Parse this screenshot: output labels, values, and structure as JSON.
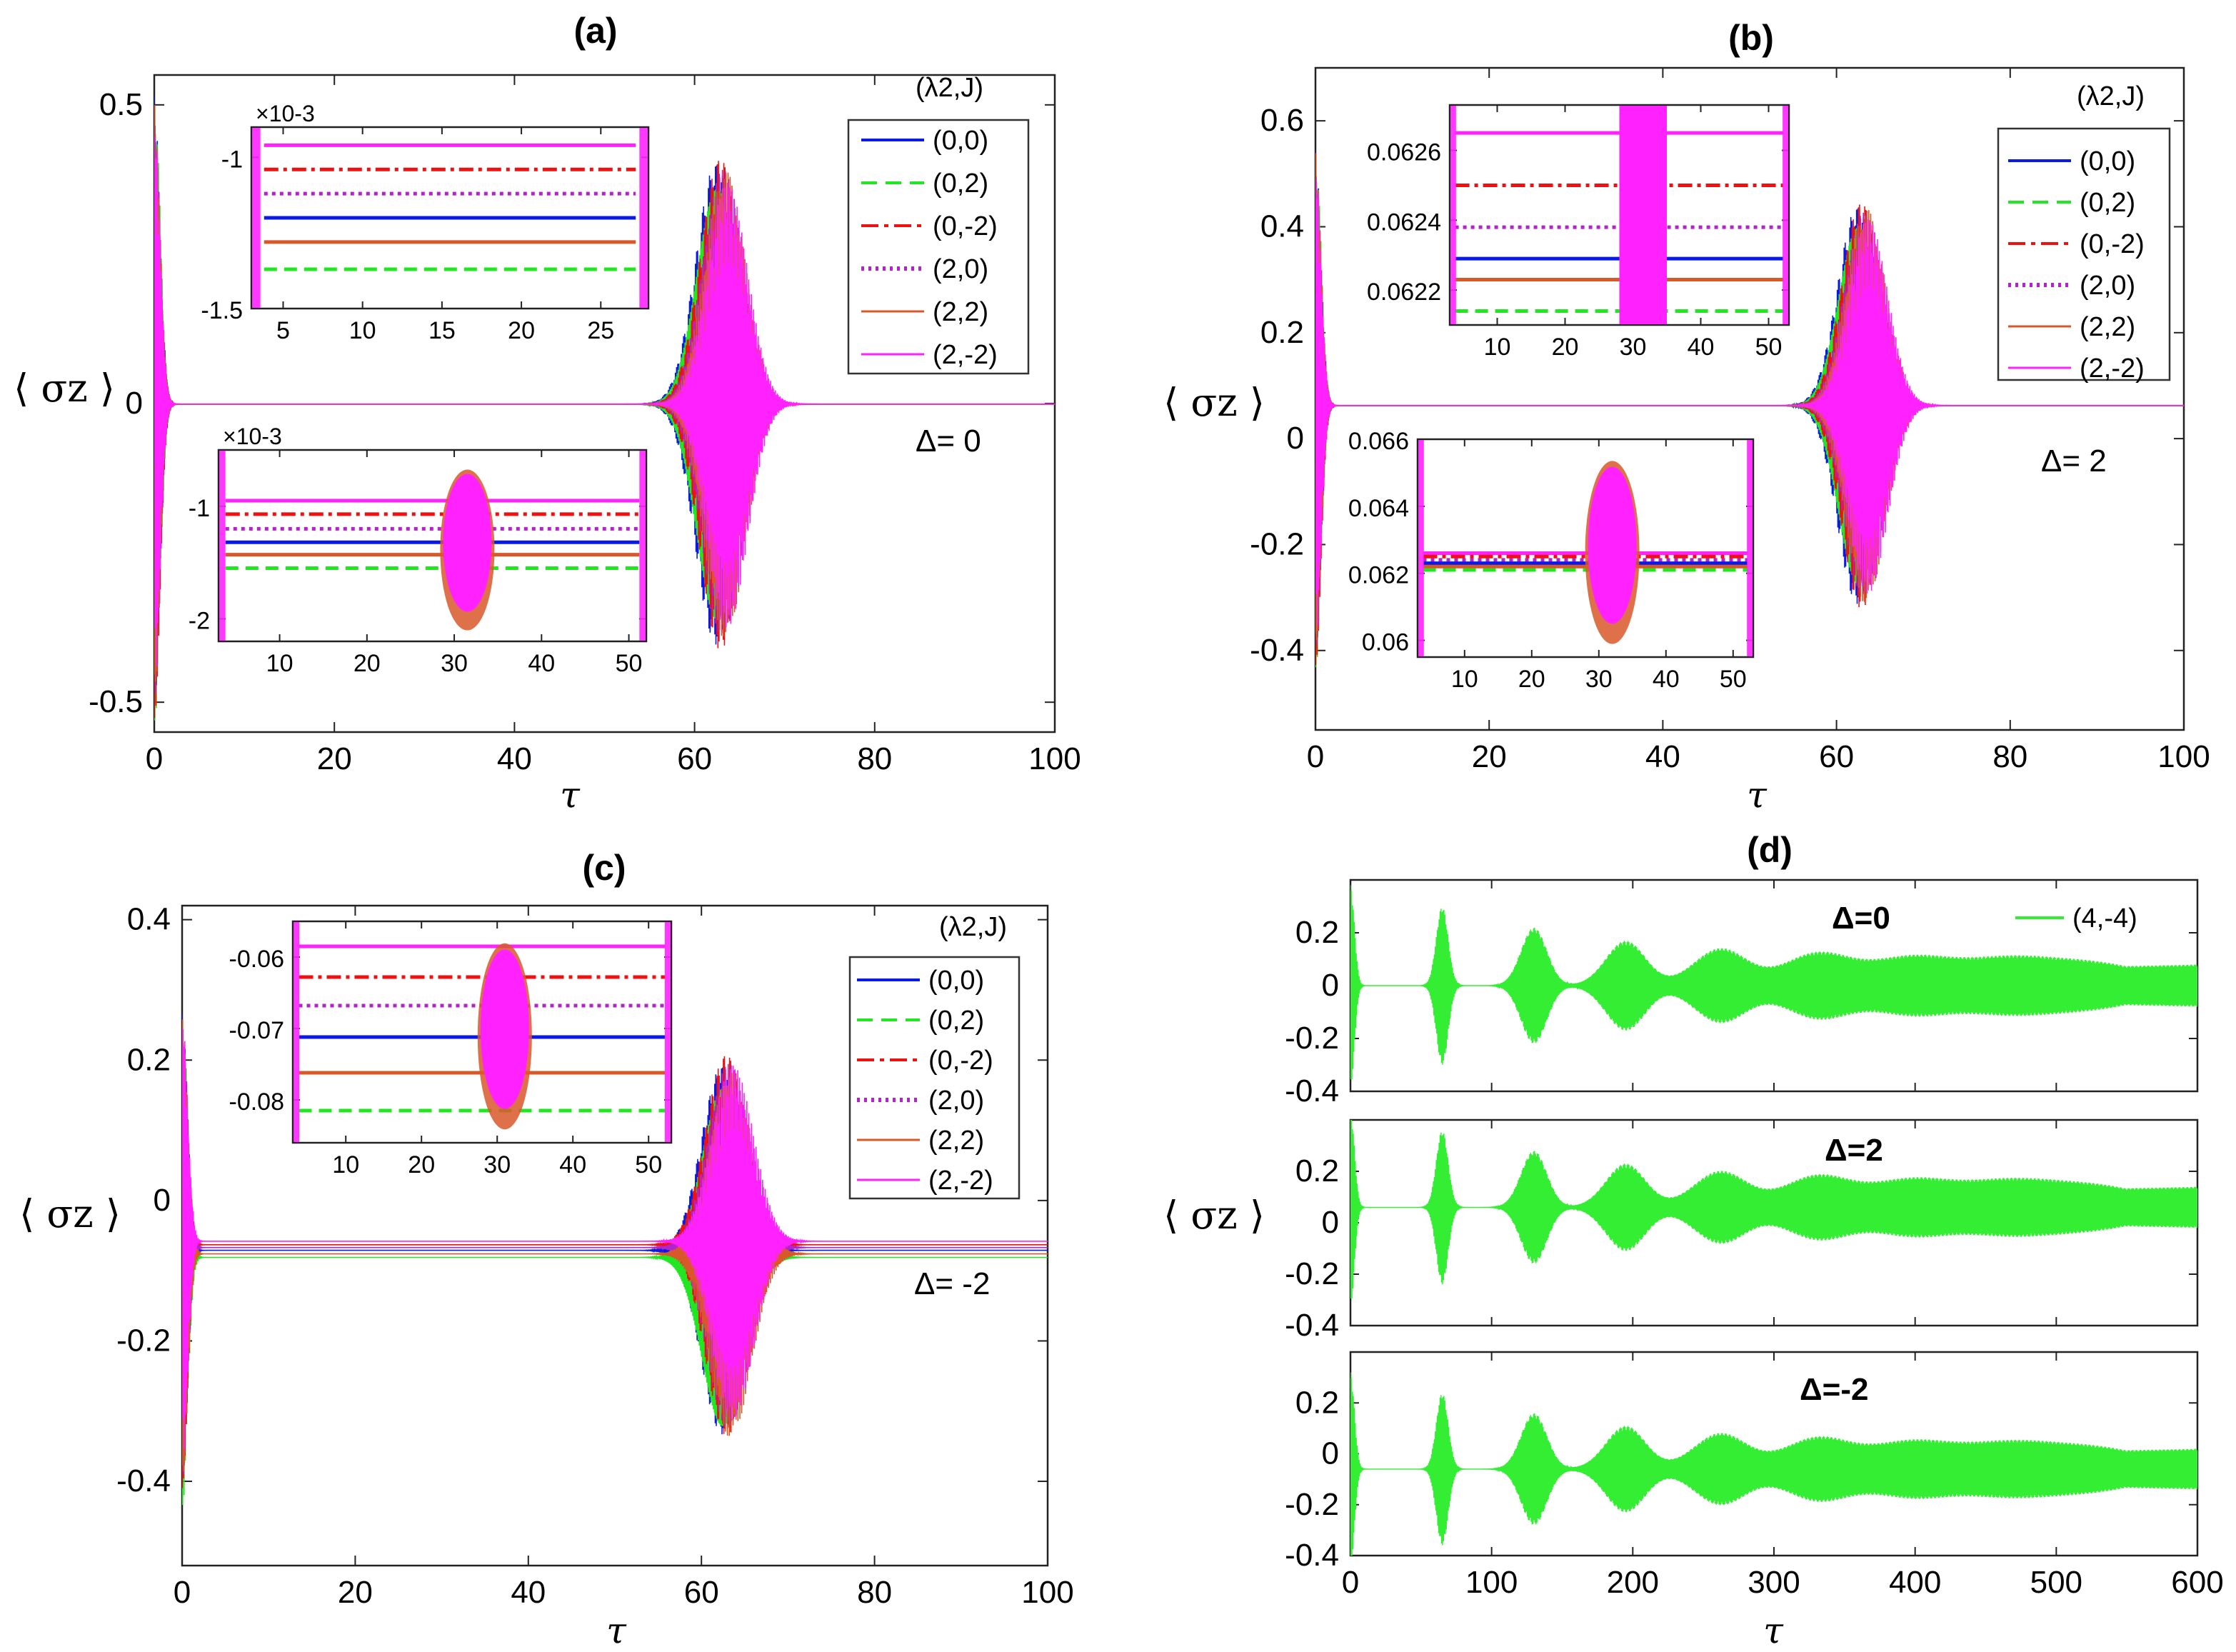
{
  "figure": {
    "colors": {
      "blue": "#0a1ae6",
      "green": "#22e622",
      "red": "#ee1111",
      "purple": "#b422cc",
      "orange": "#d9582a",
      "magenta": "#ff22ff",
      "green_d": "#33ee33"
    },
    "x_axis_label": "τ",
    "y_axis_label": "⟨ σz ⟩",
    "legend_title": "(λ2,J)",
    "legend_entries": [
      "(0,0)",
      "(0,2)",
      "(0,-2)",
      "(2,0)",
      "(2,2)",
      "(2,-2)"
    ],
    "panels": {
      "a": {
        "title": "(a)",
        "annotation": "Δ= 0"
      },
      "b": {
        "title": "(b)",
        "annotation": "Δ= 2"
      },
      "c": {
        "title": "(c)",
        "annotation": "Δ= -2"
      },
      "d": {
        "title": "(d)",
        "annotations": [
          "Δ=0",
          "Δ=2",
          "Δ=-2"
        ],
        "legend": "(4,-4)"
      }
    },
    "inset_exponent": "×10-3"
  },
  "chart_data": [
    {
      "id": "a",
      "type": "line",
      "title": "(a)",
      "xlabel": "τ",
      "ylabel": "⟨σz⟩",
      "xlim": [
        0,
        100
      ],
      "ylim": [
        -0.55,
        0.55
      ],
      "xticks": [
        0,
        20,
        40,
        60,
        80,
        100
      ],
      "xtick_labels": [
        "0",
        "20",
        "40",
        "60",
        "80",
        "100"
      ],
      "yticks": [
        -0.5,
        0,
        0.5
      ],
      "ytick_labels": [
        "-0.5",
        "0",
        "0.5"
      ],
      "series": [
        {
          "name": "(0,0)",
          "offset": -0.001,
          "revival_center": 63,
          "revival_amp": 0.43
        },
        {
          "name": "(0,2)",
          "offset": -0.0014,
          "revival_center": 63,
          "revival_amp": 0.45
        },
        {
          "name": "(0,-2)",
          "offset": -0.0009,
          "revival_center": 63,
          "revival_amp": 0.44
        },
        {
          "name": "(2,0)",
          "offset": -0.001,
          "revival_center": 63,
          "revival_amp": 0.42
        },
        {
          "name": "(2,2)",
          "offset": -0.0012,
          "revival_center": 63,
          "revival_amp": 0.42
        },
        {
          "name": "(2,-2)",
          "offset": -0.0008,
          "revival_center": 63,
          "revival_amp": 0.4
        }
      ],
      "annotation": "Δ= 0",
      "insets": [
        {
          "xlim": [
            3,
            28
          ],
          "ylim": [
            -1.5,
            -0.9
          ],
          "xticks": [
            5,
            10,
            15,
            20,
            25
          ],
          "yticks": [
            -1.5,
            -1
          ],
          "ytick_labels": [
            "-1.5",
            "-1"
          ],
          "exponent": "×10-3",
          "levels": [
            -0.96,
            -1.04,
            -1.12,
            -1.2,
            -1.28,
            -1.37
          ]
        },
        {
          "xlim": [
            3,
            52
          ],
          "ylim": [
            -2.2,
            -0.5
          ],
          "xticks": [
            10,
            20,
            30,
            40,
            50
          ],
          "yticks": [
            -2,
            -1
          ],
          "ytick_labels": [
            "-2",
            "-1"
          ],
          "exponent": "×10-3",
          "levels": [
            -0.95,
            -1.07,
            -1.2,
            -1.32,
            -1.43,
            -1.55
          ]
        }
      ]
    },
    {
      "id": "b",
      "type": "line",
      "title": "(b)",
      "xlabel": "τ",
      "ylabel": "⟨σz⟩",
      "xlim": [
        0,
        100
      ],
      "ylim": [
        -0.55,
        0.7
      ],
      "xticks": [
        0,
        20,
        40,
        60,
        80,
        100
      ],
      "xtick_labels": [
        "0",
        "20",
        "40",
        "60",
        "80",
        "100"
      ],
      "yticks": [
        -0.4,
        -0.2,
        0,
        0.2,
        0.4,
        0.6
      ],
      "ytick_labels": [
        "-0.4",
        "-0.2",
        "0",
        "0.2",
        "0.4",
        "0.6"
      ],
      "series": [
        {
          "name": "(0,0)",
          "offset": 0.0623,
          "revival_center": 63,
          "revival_amp": 0.4
        },
        {
          "name": "(0,2)",
          "offset": 0.0621,
          "revival_center": 63,
          "revival_amp": 0.42
        },
        {
          "name": "(0,-2)",
          "offset": 0.0625,
          "revival_center": 63,
          "revival_amp": 0.41
        },
        {
          "name": "(2,0)",
          "offset": 0.0624,
          "revival_center": 63,
          "revival_amp": 0.39
        },
        {
          "name": "(2,2)",
          "offset": 0.0622,
          "revival_center": 63,
          "revival_amp": 0.4
        },
        {
          "name": "(2,-2)",
          "offset": 0.0626,
          "revival_center": 63,
          "revival_amp": 0.38
        }
      ],
      "annotation": "Δ= 2",
      "insets": [
        {
          "xlim": [
            3,
            53
          ],
          "ylim": [
            0.0621,
            0.06273
          ],
          "xticks": [
            10,
            20,
            30,
            40,
            50
          ],
          "yticks": [
            0.0622,
            0.0624,
            0.0626
          ],
          "ytick_labels": [
            "0.0622",
            "0.0624",
            "0.0626"
          ],
          "levels": [
            0.06265,
            0.0625,
            0.06238,
            0.06229,
            0.06223,
            0.06214
          ]
        },
        {
          "xlim": [
            3,
            53
          ],
          "ylim": [
            0.0595,
            0.066
          ],
          "xticks": [
            10,
            20,
            30,
            40,
            50
          ],
          "yticks": [
            0.06,
            0.062,
            0.064,
            0.066
          ],
          "ytick_labels": [
            "0.06",
            "0.062",
            "0.064",
            "0.066"
          ],
          "levels": [
            0.0626,
            0.0625,
            0.0624,
            0.0623,
            0.0622,
            0.0621
          ]
        }
      ]
    },
    {
      "id": "c",
      "type": "line",
      "title": "(c)",
      "xlabel": "τ",
      "ylabel": "⟨σz⟩",
      "xlim": [
        0,
        100
      ],
      "ylim": [
        -0.52,
        0.42
      ],
      "xticks": [
        0,
        20,
        40,
        60,
        80,
        100
      ],
      "xtick_labels": [
        "0",
        "20",
        "40",
        "60",
        "80",
        "100"
      ],
      "yticks": [
        -0.4,
        -0.2,
        0,
        0.2,
        0.4
      ],
      "ytick_labels": [
        "-0.4",
        "-0.2",
        "0",
        "0.2",
        "0.4"
      ],
      "series": [
        {
          "name": "(0,0)",
          "offset": -0.071,
          "revival_center": 63,
          "revival_amp": 0.28
        },
        {
          "name": "(0,2)",
          "offset": -0.081,
          "revival_center": 63,
          "revival_amp": 0.3
        },
        {
          "name": "(0,-2)",
          "offset": -0.063,
          "revival_center": 63,
          "revival_amp": 0.29
        },
        {
          "name": "(2,0)",
          "offset": -0.067,
          "revival_center": 63,
          "revival_amp": 0.28
        },
        {
          "name": "(2,2)",
          "offset": -0.076,
          "revival_center": 63,
          "revival_amp": 0.28
        },
        {
          "name": "(2,-2)",
          "offset": -0.058,
          "revival_center": 63,
          "revival_amp": 0.27
        }
      ],
      "annotation": "Δ= -2",
      "insets": [
        {
          "xlim": [
            3,
            53
          ],
          "ylim": [
            -0.086,
            -0.055
          ],
          "xticks": [
            10,
            20,
            30,
            40,
            50
          ],
          "yticks": [
            -0.08,
            -0.07,
            -0.06
          ],
          "ytick_labels": [
            "-0.08",
            "-0.07",
            "-0.06"
          ],
          "levels": [
            -0.0585,
            -0.0628,
            -0.0668,
            -0.0712,
            -0.0762,
            -0.0815
          ]
        }
      ]
    },
    {
      "id": "d",
      "type": "line",
      "title": "(d)",
      "xlabel": "τ",
      "ylabel": "⟨σz⟩",
      "xlim": [
        0,
        600
      ],
      "ylim": [
        -0.4,
        0.4
      ],
      "xticks": [
        0,
        100,
        200,
        300,
        400,
        500,
        600
      ],
      "xtick_labels": [
        "0",
        "100",
        "200",
        "300",
        "400",
        "500",
        "600"
      ],
      "yticks": [
        -0.4,
        -0.2,
        0,
        0.2
      ],
      "ytick_labels": [
        "-0.4",
        "-0.2",
        "0",
        "0.2"
      ],
      "series": [
        {
          "name": "(4,-4)"
        }
      ],
      "subplots": [
        {
          "annotation": "Δ=0",
          "offset": 0.0
        },
        {
          "annotation": "Δ=2",
          "offset": 0.06
        },
        {
          "annotation": "Δ=-2",
          "offset": -0.06
        }
      ],
      "revival_times": [
        65,
        130,
        195,
        262,
        330,
        395,
        462,
        530
      ],
      "revival_amps": [
        0.3,
        0.22,
        0.17,
        0.14,
        0.12,
        0.1,
        0.09,
        0.08
      ]
    }
  ]
}
